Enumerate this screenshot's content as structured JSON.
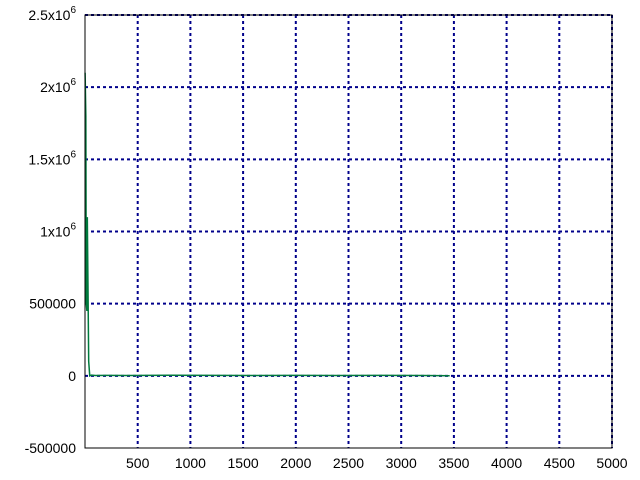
{
  "chart_data": {
    "type": "line",
    "title": "",
    "xlabel": "",
    "ylabel": "",
    "xlim": [
      0,
      5000
    ],
    "ylim": [
      -500000,
      2500000
    ],
    "grid": true,
    "grid_color": "#00008b",
    "line_color": "#007a3d",
    "x_ticks": [
      {
        "value": 500,
        "label": "500"
      },
      {
        "value": 1000,
        "label": "1000"
      },
      {
        "value": 1500,
        "label": "1500"
      },
      {
        "value": 2000,
        "label": "2000"
      },
      {
        "value": 2500,
        "label": "2500"
      },
      {
        "value": 3000,
        "label": "3000"
      },
      {
        "value": 3500,
        "label": "3500"
      },
      {
        "value": 4000,
        "label": "4000"
      },
      {
        "value": 4500,
        "label": "4500"
      },
      {
        "value": 5000,
        "label": "5000"
      }
    ],
    "y_ticks": [
      {
        "value": -500000,
        "base": "-500000",
        "exp": ""
      },
      {
        "value": 0,
        "base": "0",
        "exp": ""
      },
      {
        "value": 500000,
        "base": "500000",
        "exp": ""
      },
      {
        "value": 1000000,
        "base": "1x10",
        "exp": "6"
      },
      {
        "value": 1500000,
        "base": "1.5x10",
        "exp": "6"
      },
      {
        "value": 2000000,
        "base": "2x10",
        "exp": "6"
      },
      {
        "value": 2500000,
        "base": "2.5x10",
        "exp": "6"
      }
    ],
    "series": [
      {
        "x": [
          1,
          8,
          12,
          18,
          22,
          28,
          35,
          45,
          60,
          100,
          200,
          400,
          800,
          1200,
          1600,
          2000,
          2400,
          2800,
          3200,
          3460
        ],
        "y": [
          2100000,
          1800000,
          500000,
          450000,
          1100000,
          650000,
          100000,
          0,
          5000,
          2000,
          3000,
          2000,
          4000,
          3000,
          2000,
          3000,
          2000,
          3000,
          2000,
          1000
        ]
      }
    ]
  }
}
